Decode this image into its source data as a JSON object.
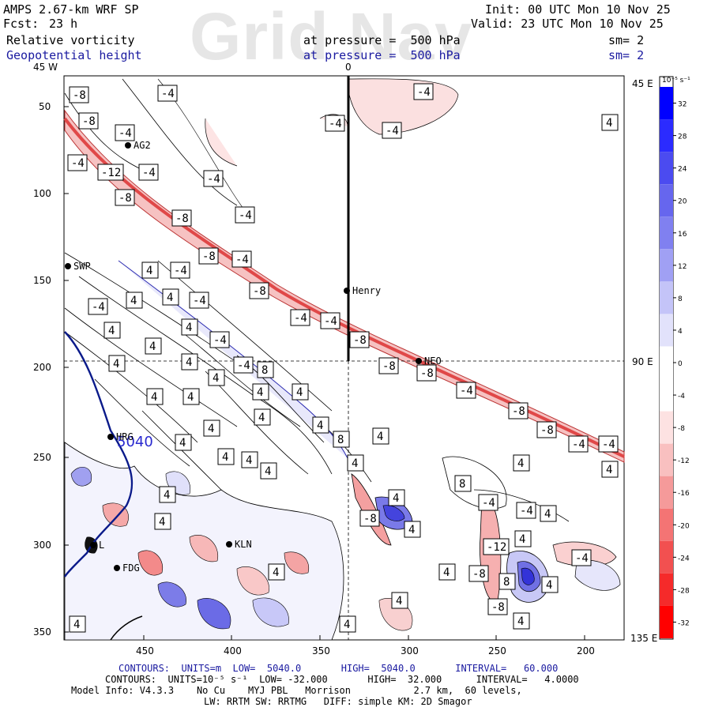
{
  "header": {
    "model": "AMPS 2.67-km WRF SP",
    "forecast_label": "Fcst:",
    "forecast_value": "23 h",
    "init": "Init: 00 UTC Mon 10 Nov 25",
    "valid": "Valid: 23 UTC Mon 10 Nov 25",
    "field1": "Relative vorticity",
    "field2": "Geopotential height",
    "pressure1": "at pressure =  500 hPa",
    "pressure2": "at pressure =  500 hPa",
    "sm1": "sm= 2",
    "sm2": "sm= 2",
    "watermark": "Grid Nav"
  },
  "map": {
    "lon_labels": {
      "left": "45 W",
      "top": "0",
      "top_right": "45 E",
      "right": "90 E",
      "bottom_right": "135 E"
    },
    "y_ticks": [
      "50",
      "100",
      "150",
      "200",
      "250",
      "300",
      "350"
    ],
    "x_ticks": [
      "450",
      "400",
      "350",
      "300",
      "250",
      "200"
    ],
    "stations": [
      "AG2",
      "SWP",
      "Henry",
      "NEO",
      "HRG",
      "KLN",
      "FDG",
      "L"
    ],
    "height_contour_label": "5040"
  },
  "colorbar": {
    "units": "10⁻⁵ s⁻¹",
    "labels": [
      "32",
      "28",
      "24",
      "20",
      "16",
      "12",
      "8",
      "4",
      "0",
      "-4",
      "-8",
      "-12",
      "-16",
      "-20",
      "-24",
      "-28",
      "-32"
    ],
    "colors": [
      "#0000ff",
      "#2b2bff",
      "#4b4bf0",
      "#6666ee",
      "#8080f0",
      "#a0a0f4",
      "#c4c4f8",
      "#e2e2fb",
      "#ffffff",
      "#ffffff",
      "#fde2e2",
      "#f9c0c0",
      "#f59a9a",
      "#f47474",
      "#f25050",
      "#f52a2a",
      "#ff0000"
    ]
  },
  "footer": {
    "line1": "CONTOURS:  UNITS=m  LOW=  5040.0       HIGH=  5040.0       INTERVAL=   60.000",
    "line2": "CONTOURS:  UNITS=10⁻⁵ s⁻¹  LOW= -32.000       HIGH=  32.000      INTERVAL=   4.0000",
    "line3": "Model Info: V4.3.3    No Cu    MYJ PBL   Morrison           2.7 km,  60 levels,",
    "line4": "LW: RRTM SW: RRTMG   DIFF: simple KM: 2D Smagor"
  }
}
